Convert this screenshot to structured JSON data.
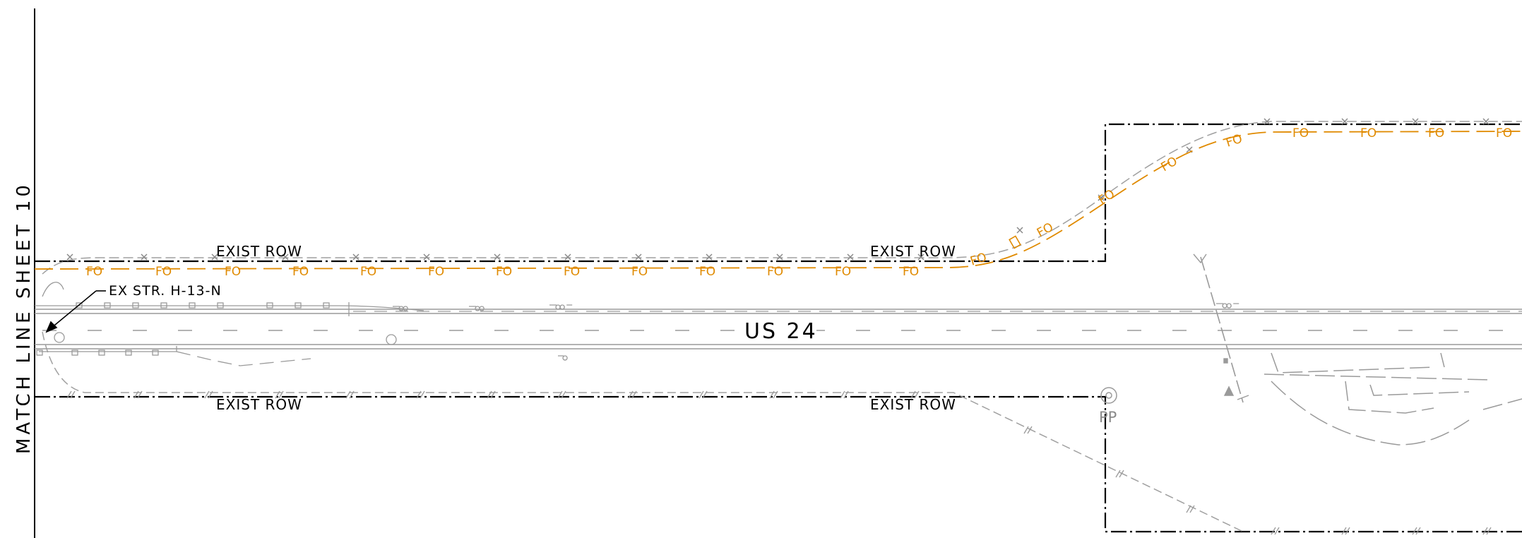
{
  "match_line": {
    "text": "MATCH LINE SHEET 10"
  },
  "row_labels": {
    "north_left": "EXIST ROW",
    "north_right": "EXIST ROW",
    "south_left": "EXIST ROW",
    "south_right": "EXIST ROW"
  },
  "road": {
    "name": "US 24"
  },
  "structure": {
    "label": "EX STR. H-13-N"
  },
  "pole": {
    "label": "PP"
  },
  "fiber_label": "FO",
  "colors": {
    "row_line": "#000000",
    "fiber": "#e08a00",
    "existing": "#9a9a9a",
    "text": "#000000"
  }
}
